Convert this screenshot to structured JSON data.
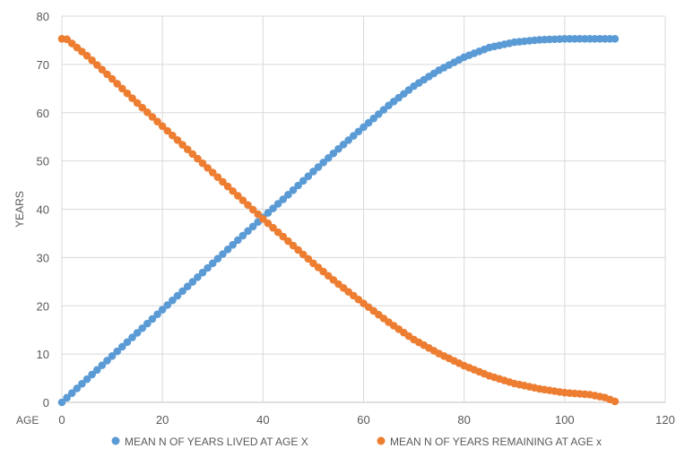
{
  "chart_data": {
    "type": "scatter",
    "title": "",
    "xlabel": "AGE",
    "ylabel": "YEARS",
    "xlim": [
      0,
      120
    ],
    "ylim": [
      0,
      80
    ],
    "x_ticks": [
      0,
      20,
      40,
      60,
      80,
      100,
      120
    ],
    "y_ticks": [
      0,
      10,
      20,
      30,
      40,
      50,
      60,
      70,
      80
    ],
    "grid": true,
    "legend_position": "bottom",
    "series": [
      {
        "name": "MEAN N OF YEARS LIVED AT AGE X",
        "color": "#5B9BD5",
        "x": [
          0,
          5,
          10,
          15,
          20,
          25,
          30,
          35,
          40,
          45,
          50,
          55,
          60,
          65,
          70,
          75,
          80,
          85,
          90,
          95,
          100,
          105,
          110
        ],
        "y": [
          0,
          4.8,
          9.6,
          14.4,
          19.2,
          24,
          28.8,
          33.6,
          38.3,
          43,
          47.8,
          52.5,
          57,
          61.5,
          65.5,
          68.8,
          71.5,
          73.5,
          74.6,
          75.1,
          75.3,
          75.3,
          75.3
        ]
      },
      {
        "name": "MEAN N OF YEARS REMAINING AT AGE x",
        "color": "#ED7D31",
        "x": [
          0,
          1,
          5,
          10,
          15,
          20,
          25,
          30,
          35,
          40,
          45,
          50,
          55,
          60,
          65,
          70,
          75,
          80,
          85,
          90,
          95,
          100,
          105,
          108,
          110
        ],
        "y": [
          75.3,
          75.2,
          71.8,
          67.0,
          62.0,
          57.2,
          52.4,
          47.6,
          42.8,
          38.0,
          33.4,
          28.8,
          24.5,
          20.5,
          16.6,
          13.0,
          10.1,
          7.6,
          5.5,
          3.9,
          2.8,
          2.0,
          1.6,
          1.0,
          0.2
        ]
      }
    ]
  }
}
